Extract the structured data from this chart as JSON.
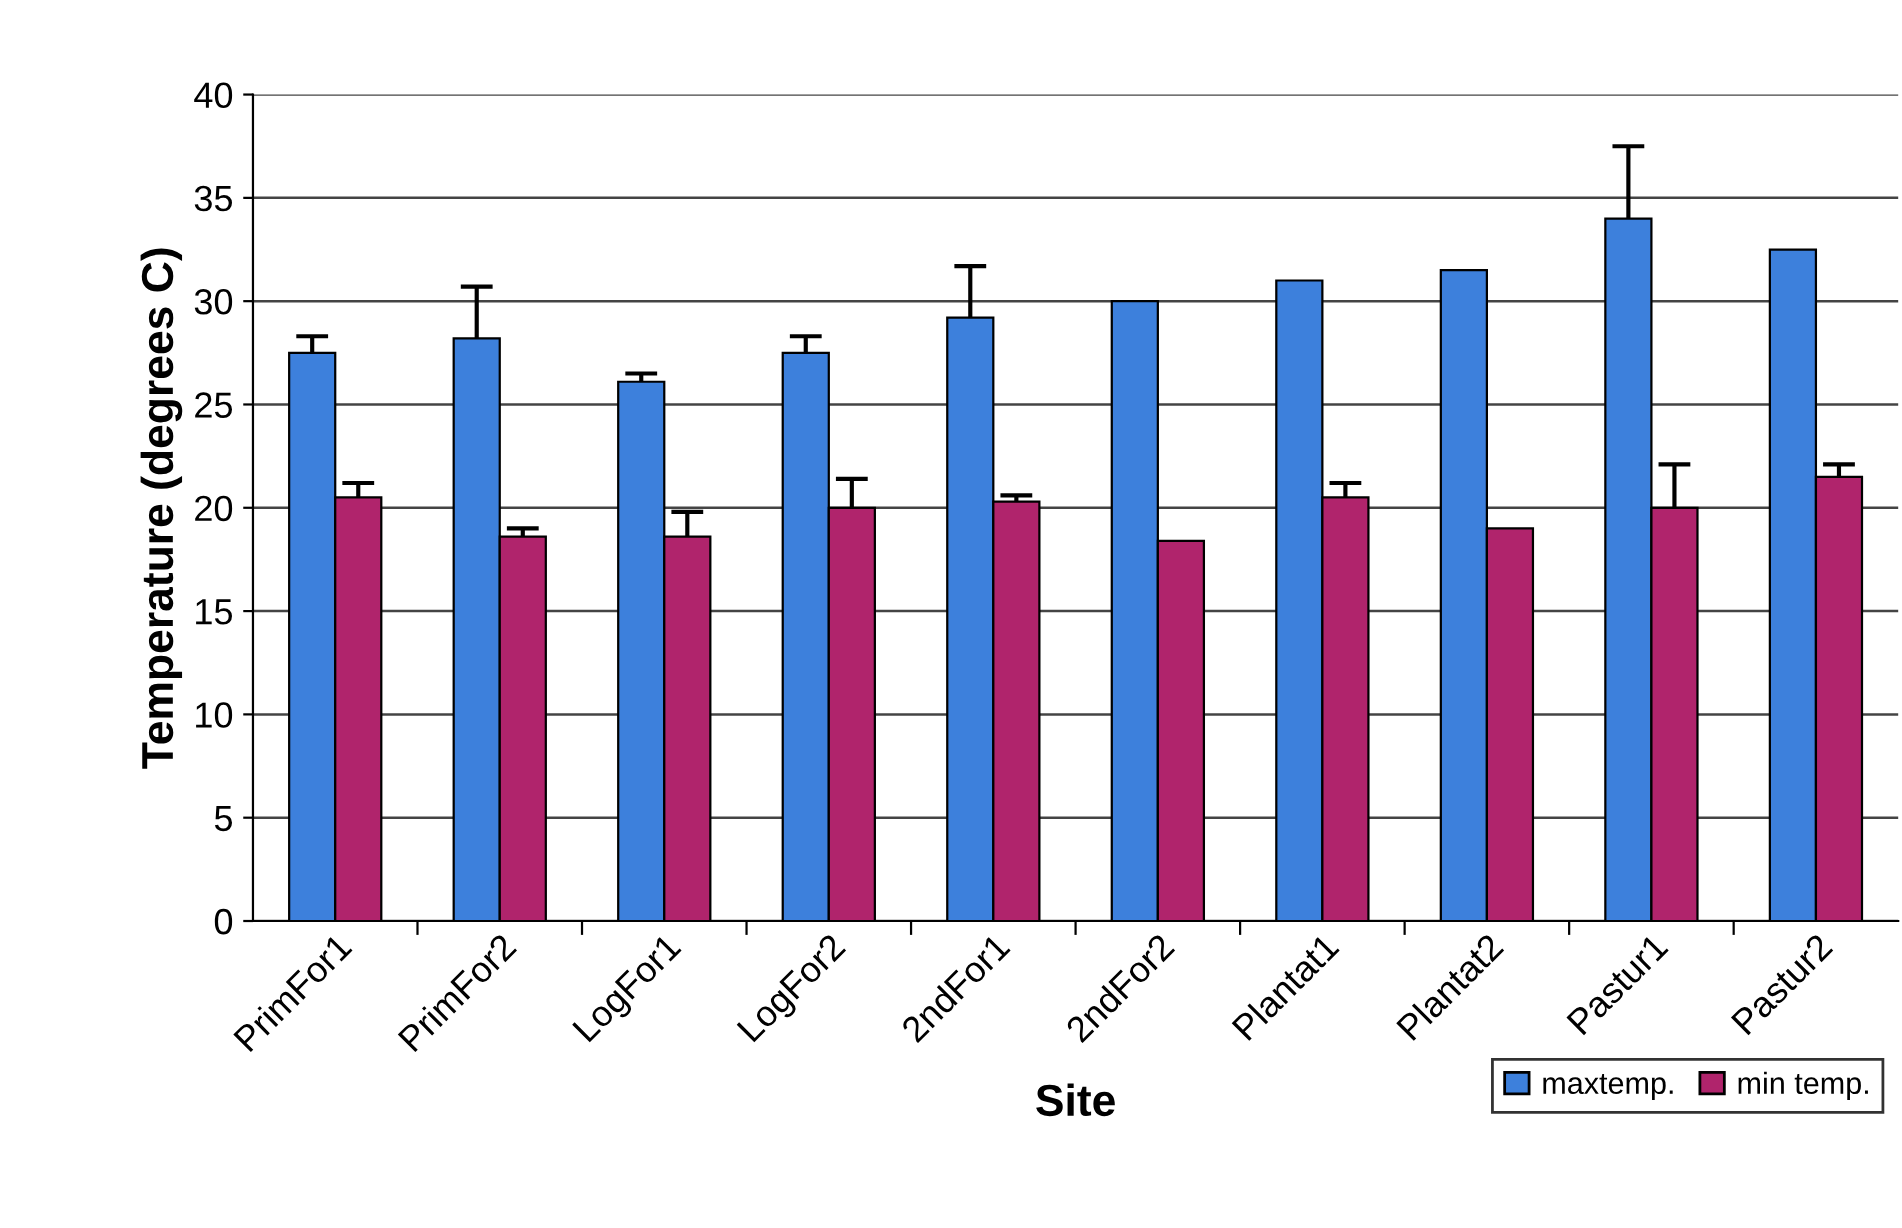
{
  "chart_data": {
    "type": "bar",
    "xlabel": "Site",
    "ylabel": "Temperature (degrees C)",
    "categories": [
      "PrimFor1",
      "PrimFor2",
      "LogFor1",
      "LogFor2",
      "2ndFor1",
      "2ndFor2",
      "Plantat1",
      "Plantat2",
      "Pastur1",
      "Pastur2"
    ],
    "series": [
      {
        "name": "maxtemp.",
        "color": "#3d80dc",
        "values": [
          27.5,
          28.2,
          26.1,
          27.5,
          29.2,
          30.0,
          31.0,
          31.5,
          34.0,
          32.5
        ],
        "errors": [
          [
            27.5,
            28.3
          ],
          [
            28.2,
            30.7
          ],
          [
            26.1,
            26.5
          ],
          [
            27.5,
            28.3
          ],
          [
            29.2,
            31.7
          ],
          null,
          null,
          null,
          [
            34.0,
            37.5
          ],
          null
        ]
      },
      {
        "name": "min temp.",
        "color": "#b0246c",
        "values": [
          20.5,
          18.6,
          18.6,
          20.0,
          20.3,
          18.4,
          20.5,
          19.0,
          20.0,
          21.5
        ],
        "errors": [
          [
            20.5,
            21.2
          ],
          [
            18.6,
            19.0
          ],
          [
            18.6,
            19.8
          ],
          [
            20.0,
            21.4
          ],
          [
            20.3,
            20.6
          ],
          null,
          [
            20.5,
            21.2
          ],
          null,
          [
            20.0,
            22.1
          ],
          [
            21.5,
            22.1
          ]
        ]
      }
    ],
    "ylim": [
      0,
      40
    ],
    "yticks": [
      0,
      5,
      10,
      15,
      20,
      25,
      30,
      35,
      40
    ],
    "grid": "y",
    "legend": "bottom right"
  }
}
